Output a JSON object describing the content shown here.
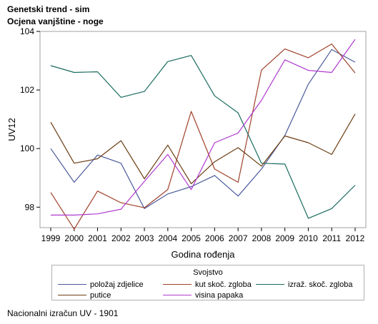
{
  "titles": {
    "line1": "Genetski trend - sim",
    "line2": "Ocjena vanjštine - noge"
  },
  "footnote": "Nacionalni izračun UV - 1901",
  "legend": {
    "title": "Svojstvo",
    "items": [
      {
        "label": "položaj zdjelice",
        "color": "#4a5a9a"
      },
      {
        "label": "kut skoč. zgloba",
        "color": "#a0412a"
      },
      {
        "label": "izraž. skoč. zgloba",
        "color": "#196b5e"
      },
      {
        "label": "putice",
        "color": "#6b3e14"
      },
      {
        "label": "visina papaka",
        "color": "#b03ad0"
      }
    ]
  },
  "chart_data": {
    "type": "line",
    "xlabel": "Godina rođenja",
    "ylabel": "UV12",
    "x": [
      1999,
      2000,
      2001,
      2002,
      2003,
      2004,
      2005,
      2006,
      2007,
      2008,
      2009,
      2010,
      2011,
      2012
    ],
    "ylim": [
      97.3,
      104.0
    ],
    "yticks": [
      98,
      100,
      102,
      104
    ],
    "grid": false,
    "legend_position": "bottom",
    "series": [
      {
        "name": "položaj zdjelice",
        "color": "#4a5a9a",
        "values": [
          100.0,
          98.85,
          99.78,
          99.5,
          97.95,
          98.45,
          98.7,
          99.08,
          98.38,
          99.3,
          100.45,
          102.2,
          103.38,
          102.95
        ]
      },
      {
        "name": "kut skoč. zgloba",
        "color": "#a0412a",
        "values": [
          98.5,
          97.25,
          98.55,
          98.15,
          97.98,
          98.6,
          101.27,
          99.3,
          98.85,
          102.68,
          103.4,
          103.1,
          103.57,
          102.58
        ]
      },
      {
        "name": "izraž. skoč. zgloba",
        "color": "#196b5e",
        "values": [
          102.83,
          102.6,
          102.62,
          101.75,
          101.95,
          102.97,
          103.18,
          101.8,
          101.22,
          99.5,
          99.47,
          97.62,
          97.95,
          98.75
        ]
      },
      {
        "name": "putice",
        "color": "#6b3e14",
        "values": [
          100.9,
          99.5,
          99.65,
          100.27,
          98.97,
          100.12,
          98.8,
          99.55,
          100.03,
          99.4,
          100.43,
          100.2,
          99.8,
          101.18
        ]
      },
      {
        "name": "visina papaka",
        "color": "#b03ad0",
        "values": [
          97.73,
          97.73,
          97.77,
          97.93,
          98.88,
          99.8,
          98.6,
          100.2,
          100.53,
          101.65,
          103.03,
          102.67,
          102.6,
          103.73
        ]
      }
    ]
  }
}
